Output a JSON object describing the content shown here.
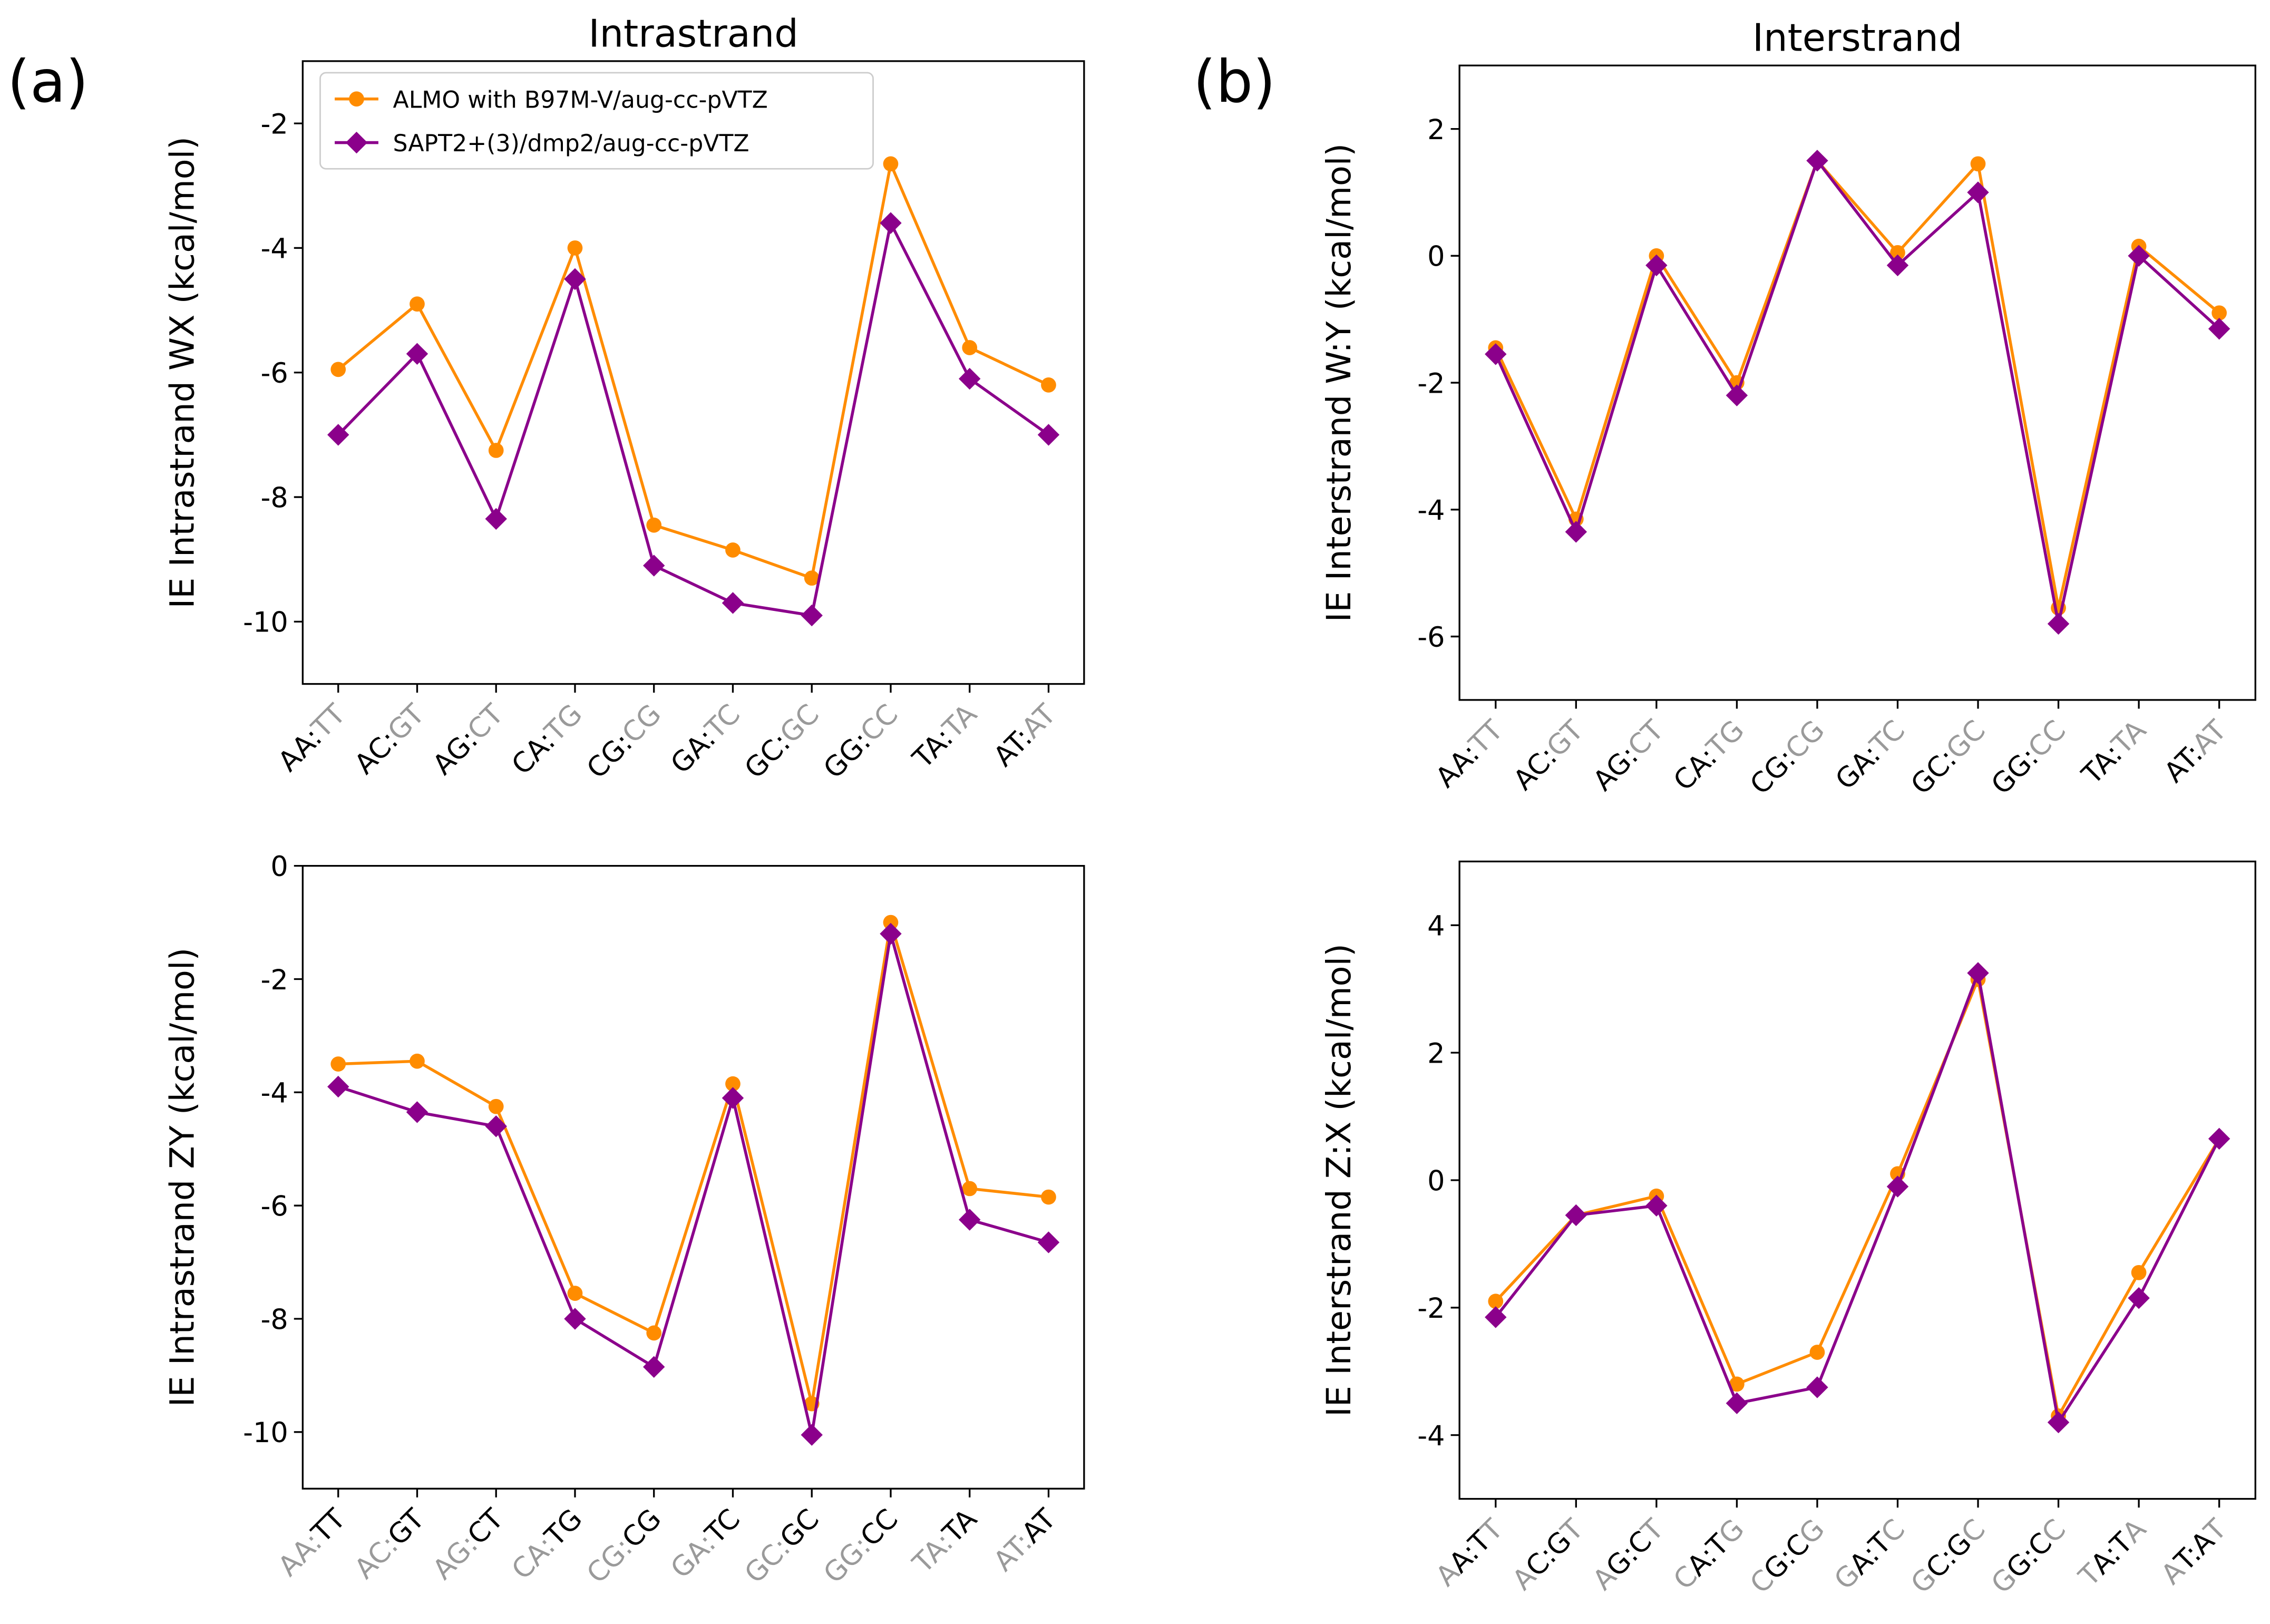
{
  "chart_data": [
    {
      "type": "line",
      "title": "Intrastrand",
      "panel_label": "(a)",
      "ylabel": "IE Intrastrand WX (kcal/mol)",
      "categories": [
        [
          [
            "AA:",
            "#000000"
          ],
          [
            "TT",
            "#9a9a9a"
          ]
        ],
        [
          [
            "AC:",
            "#000000"
          ],
          [
            "GT",
            "#9a9a9a"
          ]
        ],
        [
          [
            "AG:",
            "#000000"
          ],
          [
            "CT",
            "#9a9a9a"
          ]
        ],
        [
          [
            "CA:",
            "#000000"
          ],
          [
            "TG",
            "#9a9a9a"
          ]
        ],
        [
          [
            "CG:",
            "#000000"
          ],
          [
            "CG",
            "#9a9a9a"
          ]
        ],
        [
          [
            "GA:",
            "#000000"
          ],
          [
            "TC",
            "#9a9a9a"
          ]
        ],
        [
          [
            "GC:",
            "#000000"
          ],
          [
            "GC",
            "#9a9a9a"
          ]
        ],
        [
          [
            "GG:",
            "#000000"
          ],
          [
            "CC",
            "#9a9a9a"
          ]
        ],
        [
          [
            "TA:",
            "#000000"
          ],
          [
            "TA",
            "#9a9a9a"
          ]
        ],
        [
          [
            "AT:",
            "#000000"
          ],
          [
            "AT",
            "#9a9a9a"
          ]
        ]
      ],
      "series": [
        {
          "name": "ALMO with B97M-V/aug-cc-pVTZ",
          "color": "#ff8c00",
          "marker": "circle",
          "values": [
            -5.95,
            -4.9,
            -7.25,
            -4.0,
            -8.45,
            -8.85,
            -9.3,
            -2.65,
            -5.6,
            -6.2
          ]
        },
        {
          "name": "SAPT2+(3)/dmp2/aug-cc-pVTZ",
          "color": "#8b008b",
          "marker": "diamond",
          "values": [
            -7.0,
            -5.7,
            -8.35,
            -4.5,
            -9.1,
            -9.7,
            -9.9,
            -3.6,
            -6.1,
            -7.0
          ]
        }
      ],
      "ylim": [
        -11,
        -1
      ],
      "yticks": [
        -10,
        -8,
        -6,
        -4,
        -2
      ],
      "legend": "upper left"
    },
    {
      "type": "line",
      "title": "Interstrand",
      "panel_label": "(b)",
      "ylabel": "IE Interstrand W:Y (kcal/mol)",
      "categories": [
        [
          [
            "AA:",
            "#000000"
          ],
          [
            "TT",
            "#9a9a9a"
          ]
        ],
        [
          [
            "AC:",
            "#000000"
          ],
          [
            "GT",
            "#9a9a9a"
          ]
        ],
        [
          [
            "AG:",
            "#000000"
          ],
          [
            "CT",
            "#9a9a9a"
          ]
        ],
        [
          [
            "CA:",
            "#000000"
          ],
          [
            "TG",
            "#9a9a9a"
          ]
        ],
        [
          [
            "CG:",
            "#000000"
          ],
          [
            "CG",
            "#9a9a9a"
          ]
        ],
        [
          [
            "GA:",
            "#000000"
          ],
          [
            "TC",
            "#9a9a9a"
          ]
        ],
        [
          [
            "GC:",
            "#000000"
          ],
          [
            "GC",
            "#9a9a9a"
          ]
        ],
        [
          [
            "GG:",
            "#000000"
          ],
          [
            "CC",
            "#9a9a9a"
          ]
        ],
        [
          [
            "TA:",
            "#000000"
          ],
          [
            "TA",
            "#9a9a9a"
          ]
        ],
        [
          [
            "AT:",
            "#000000"
          ],
          [
            "AT",
            "#9a9a9a"
          ]
        ]
      ],
      "series": [
        {
          "color": "#ff8c00",
          "marker": "circle",
          "values": [
            -1.45,
            -4.15,
            0.0,
            -2.0,
            1.5,
            0.05,
            1.45,
            -5.55,
            0.15,
            -0.9
          ]
        },
        {
          "color": "#8b008b",
          "marker": "diamond",
          "values": [
            -1.55,
            -4.35,
            -0.15,
            -2.2,
            1.5,
            -0.15,
            1.0,
            -5.8,
            0.0,
            -1.15
          ]
        }
      ],
      "ylim": [
        -7,
        3
      ],
      "yticks": [
        -6,
        -4,
        -2,
        0,
        2
      ]
    },
    {
      "type": "line",
      "ylabel": "IE Intrastrand ZY (kcal/mol)",
      "categories": [
        [
          [
            "AA:",
            "#9a9a9a"
          ],
          [
            "TT",
            "#000000"
          ]
        ],
        [
          [
            "AC:",
            "#9a9a9a"
          ],
          [
            "GT",
            "#000000"
          ]
        ],
        [
          [
            "AG:",
            "#9a9a9a"
          ],
          [
            "CT",
            "#000000"
          ]
        ],
        [
          [
            "CA:",
            "#9a9a9a"
          ],
          [
            "TG",
            "#000000"
          ]
        ],
        [
          [
            "CG:",
            "#9a9a9a"
          ],
          [
            "CG",
            "#000000"
          ]
        ],
        [
          [
            "GA:",
            "#9a9a9a"
          ],
          [
            "TC",
            "#000000"
          ]
        ],
        [
          [
            "GC:",
            "#9a9a9a"
          ],
          [
            "GC",
            "#000000"
          ]
        ],
        [
          [
            "GG:",
            "#9a9a9a"
          ],
          [
            "CC",
            "#000000"
          ]
        ],
        [
          [
            "TA:",
            "#9a9a9a"
          ],
          [
            "TA",
            "#000000"
          ]
        ],
        [
          [
            "AT:",
            "#9a9a9a"
          ],
          [
            "AT",
            "#000000"
          ]
        ]
      ],
      "series": [
        {
          "color": "#ff8c00",
          "marker": "circle",
          "values": [
            -3.5,
            -3.45,
            -4.25,
            -7.55,
            -8.25,
            -3.85,
            -9.5,
            -1.0,
            -5.7,
            -5.85
          ]
        },
        {
          "color": "#8b008b",
          "marker": "diamond",
          "values": [
            -3.9,
            -4.35,
            -4.6,
            -8.0,
            -8.85,
            -4.1,
            -10.05,
            -1.2,
            -6.25,
            -6.65
          ]
        }
      ],
      "ylim": [
        -11,
        0
      ],
      "yticks": [
        -10,
        -8,
        -6,
        -4,
        -2,
        0
      ]
    },
    {
      "type": "line",
      "ylabel": "IE Interstrand Z:X (kcal/mol)",
      "categories": [
        [
          [
            "A",
            "#9a9a9a"
          ],
          [
            "A:T",
            "#000000"
          ],
          [
            "T",
            "#9a9a9a"
          ]
        ],
        [
          [
            "A",
            "#9a9a9a"
          ],
          [
            "C:G",
            "#000000"
          ],
          [
            "T",
            "#9a9a9a"
          ]
        ],
        [
          [
            "A",
            "#9a9a9a"
          ],
          [
            "G:C",
            "#000000"
          ],
          [
            "T",
            "#9a9a9a"
          ]
        ],
        [
          [
            "C",
            "#9a9a9a"
          ],
          [
            "A:T",
            "#000000"
          ],
          [
            "G",
            "#9a9a9a"
          ]
        ],
        [
          [
            "C",
            "#9a9a9a"
          ],
          [
            "G:C",
            "#000000"
          ],
          [
            "G",
            "#9a9a9a"
          ]
        ],
        [
          [
            "G",
            "#9a9a9a"
          ],
          [
            "A:T",
            "#000000"
          ],
          [
            "C",
            "#9a9a9a"
          ]
        ],
        [
          [
            "G",
            "#9a9a9a"
          ],
          [
            "C:G",
            "#000000"
          ],
          [
            "C",
            "#9a9a9a"
          ]
        ],
        [
          [
            "G",
            "#9a9a9a"
          ],
          [
            "G:C",
            "#000000"
          ],
          [
            "C",
            "#9a9a9a"
          ]
        ],
        [
          [
            "T",
            "#9a9a9a"
          ],
          [
            "A:T",
            "#000000"
          ],
          [
            "A",
            "#9a9a9a"
          ]
        ],
        [
          [
            "A",
            "#9a9a9a"
          ],
          [
            "T:A",
            "#000000"
          ],
          [
            "T",
            "#9a9a9a"
          ]
        ]
      ],
      "series": [
        {
          "color": "#ff8c00",
          "marker": "circle",
          "values": [
            -1.9,
            -0.55,
            -0.25,
            -3.2,
            -2.7,
            0.1,
            3.15,
            -3.7,
            -1.45,
            0.65
          ]
        },
        {
          "color": "#8b008b",
          "marker": "diamond",
          "values": [
            -2.15,
            -0.55,
            -0.4,
            -3.5,
            -3.25,
            -0.1,
            3.25,
            -3.8,
            -1.85,
            0.65
          ]
        }
      ],
      "ylim": [
        -5,
        5
      ],
      "yticks": [
        -4,
        -2,
        0,
        2,
        4
      ]
    }
  ]
}
